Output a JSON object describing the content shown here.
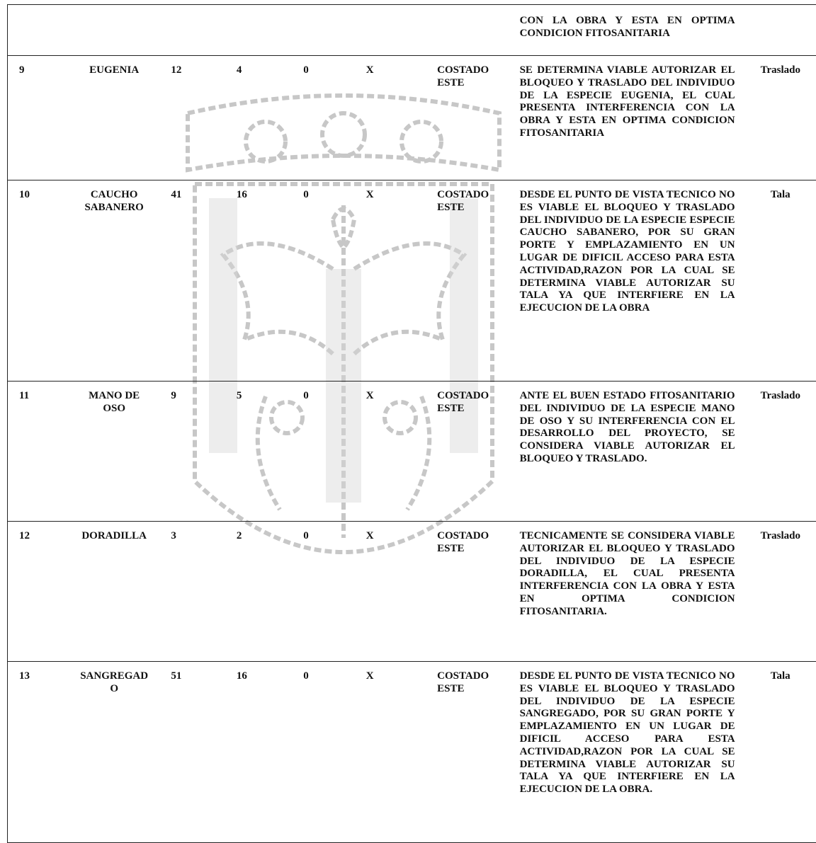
{
  "watermark": {
    "name": "coat-of-arms-watermark",
    "color": "#9a9a9a"
  },
  "top_fragment": {
    "description": "CON LA OBRA Y ESTA EN OPTIMA CONDICION FITOSANITARIA"
  },
  "rows": [
    {
      "num": "9",
      "name": "EUGENIA",
      "a": "12",
      "b": "4",
      "c": "0",
      "x": "X",
      "location": "COSTADO ESTE",
      "description": "SE DETERMINA VIABLE AUTORIZAR EL BLOQUEO Y TRASLADO DEL INDIVIDUO DE LA ESPECIE EUGENIA, EL CUAL PRESENTA INTERFERENCIA CON LA OBRA Y ESTA EN OPTIMA CONDICION FITOSANITARIA",
      "action": "Traslado"
    },
    {
      "num": "10",
      "name": "CAUCHO SABANERO",
      "a": "41",
      "b": "16",
      "c": "0",
      "x": "X",
      "location": "COSTADO ESTE",
      "description": "DESDE EL PUNTO DE VISTA TECNICO NO ES VIABLE EL BLOQUEO Y TRASLADO DEL INDIVIDUO DE LA ESPECIE ESPECIE CAUCHO SABANERO, POR SU GRAN PORTE Y EMPLAZAMIENTO EN UN LUGAR DE DIFICIL ACCESO PARA ESTA ACTIVIDAD,RAZON POR LA CUAL SE DETERMINA VIABLE AUTORIZAR SU TALA YA QUE INTERFIERE EN LA EJECUCION DE LA OBRA",
      "action": "Tala"
    },
    {
      "num": "11",
      "name": "MANO DE OSO",
      "a": "9",
      "b": "5",
      "c": "0",
      "x": "X",
      "location": "COSTADO ESTE",
      "description": "ANTE EL BUEN ESTADO FITOSANITARIO DEL INDIVIDUO DE LA ESPECIE MANO DE OSO Y SU INTERFERENCIA CON EL DESARROLLO DEL PROYECTO, SE CONSIDERA VIABLE AUTORIZAR EL BLOQUEO Y TRASLADO.",
      "action": "Traslado"
    },
    {
      "num": "12",
      "name": "DORADILLA",
      "a": "3",
      "b": "2",
      "c": "0",
      "x": "X",
      "location": "COSTADO ESTE",
      "description": "TECNICAMENTE SE CONSIDERA VIABLE AUTORIZAR EL BLOQUEO Y TRASLADO DEL INDIVIDUO DE LA ESPECIE DORADILLA, EL CUAL PRESENTA INTERFERENCIA CON LA OBRA Y ESTA EN OPTIMA CONDICION FITOSANITARIA.",
      "action": "Traslado"
    },
    {
      "num": "13",
      "name": "SANGREGAD O",
      "a": "51",
      "b": "16",
      "c": "0",
      "x": "X",
      "location": "COSTADO ESTE",
      "description": "DESDE EL PUNTO DE VISTA TECNICO NO ES VIABLE EL BLOQUEO Y TRASLADO DEL INDIVIDUO DE LA ESPECIE SANGREGADO, POR SU GRAN PORTE Y EMPLAZAMIENTO EN UN LUGAR DE DIFICIL ACCESO PARA ESTA ACTIVIDAD,RAZON POR LA CUAL SE DETERMINA VIABLE AUTORIZAR SU TALA YA QUE INTERFIERE EN LA EJECUCION DE LA OBRA.",
      "action": "Tala"
    }
  ]
}
